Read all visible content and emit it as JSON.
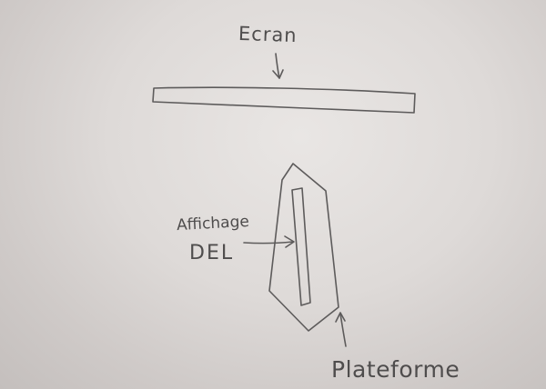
{
  "labels": {
    "screen": "Ecran",
    "led_display_line1": "Affichage",
    "led_display_line2": "DEL",
    "platform": "Plateforme"
  },
  "colors": {
    "paper": "#e4e1df",
    "ink": "#5d5b5b"
  }
}
